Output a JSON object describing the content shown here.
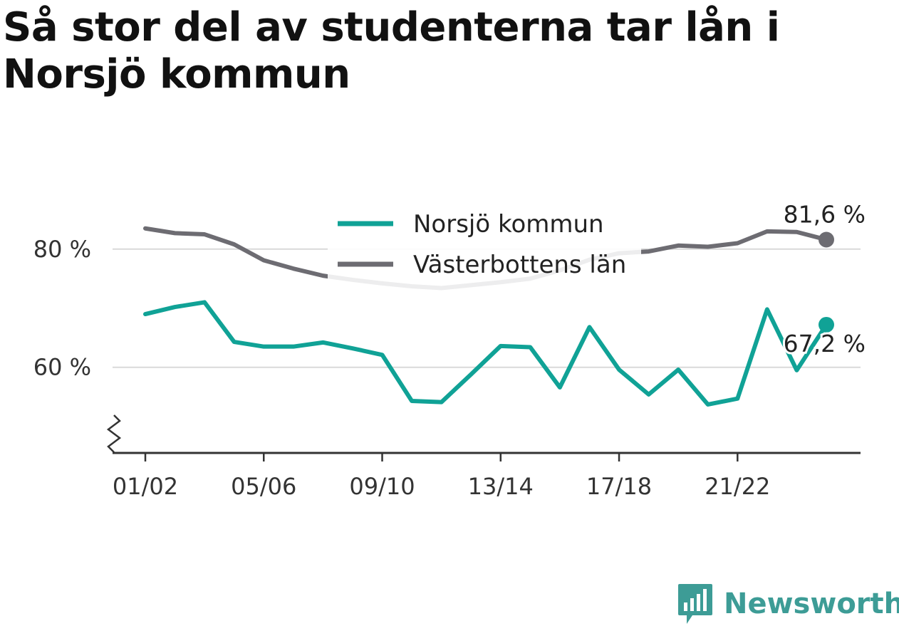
{
  "title": "Så stor del av studenterna tar lån i Norsjö kommun",
  "brand": {
    "name": "Newsworthy",
    "icon": "bar-chart-speech-bubble-icon",
    "color": "#3d9c96"
  },
  "chart_data": {
    "type": "line",
    "x": [
      "01/02",
      "02/03",
      "03/04",
      "04/05",
      "05/06",
      "06/07",
      "07/08",
      "08/09",
      "09/10",
      "10/11",
      "11/12",
      "12/13",
      "13/14",
      "14/15",
      "15/16",
      "16/17",
      "17/18",
      "18/19",
      "19/20",
      "20/21",
      "21/22",
      "22/23",
      "23/24",
      "24/25"
    ],
    "x_tick_labels": [
      "01/02",
      "05/06",
      "09/10",
      "13/14",
      "17/18",
      "21/22"
    ],
    "y_tick_labels": [
      "60 %",
      "80 %"
    ],
    "y_ticks": [
      60,
      80
    ],
    "ylim": [
      45.5,
      86
    ],
    "y_axis_break": true,
    "grid": true,
    "legend_position": "top-center",
    "series": [
      {
        "name": "Norsjö kommun",
        "color": "#10a296",
        "end_label": "67,2 %",
        "values": [
          69,
          70.2,
          71,
          64.3,
          63.5,
          63.5,
          64.2,
          63.2,
          62.1,
          54.3,
          54.1,
          58.8,
          63.6,
          63.4,
          56.6,
          66.8,
          59.6,
          55.4,
          59.6,
          53.7,
          54.7,
          69.8,
          59.5,
          67.2
        ]
      },
      {
        "name": "Västerbottens län",
        "color": "#6d6c72",
        "end_label": "81,6 %",
        "values": [
          83.5,
          82.7,
          82.5,
          80.8,
          78.1,
          76.7,
          75.5,
          74.8,
          74.2,
          73.7,
          73.4,
          73.9,
          74.4,
          75.0,
          76.4,
          78.2,
          79.3,
          79.6,
          80.6,
          80.4,
          81.0,
          83.0,
          82.9,
          81.6
        ]
      }
    ]
  }
}
